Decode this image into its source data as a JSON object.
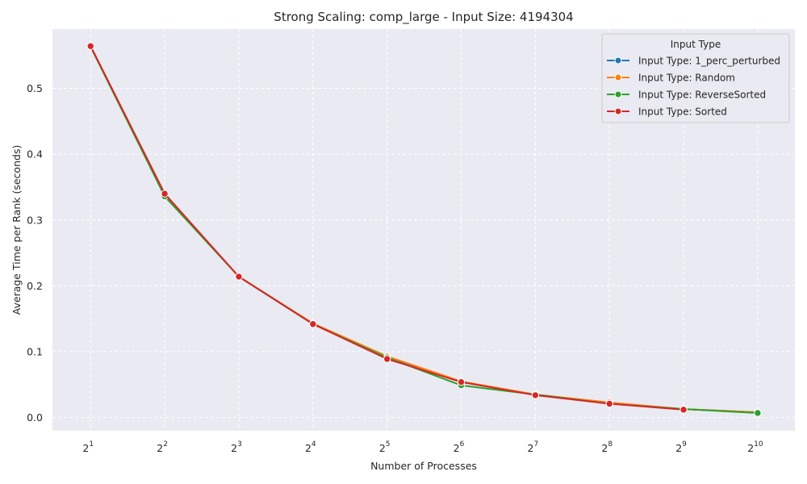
{
  "chart_data": {
    "type": "line",
    "title": "Strong Scaling: comp_large - Input Size: 4194304",
    "xlabel": "Number of Processes",
    "ylabel": "Average Time per Rank (seconds)",
    "x_scale": "log2",
    "x_ticks": [
      {
        "base": "2",
        "exp": "1"
      },
      {
        "base": "2",
        "exp": "2"
      },
      {
        "base": "2",
        "exp": "3"
      },
      {
        "base": "2",
        "exp": "4"
      },
      {
        "base": "2",
        "exp": "5"
      },
      {
        "base": "2",
        "exp": "6"
      },
      {
        "base": "2",
        "exp": "7"
      },
      {
        "base": "2",
        "exp": "8"
      },
      {
        "base": "2",
        "exp": "9"
      },
      {
        "base": "2",
        "exp": "10"
      }
    ],
    "y_ticks": [
      "0.0",
      "0.1",
      "0.2",
      "0.3",
      "0.4",
      "0.5"
    ],
    "xlim": [
      1.4,
      1450
    ],
    "ylim": [
      -0.02,
      0.59
    ],
    "grid": true,
    "legend": {
      "title": "Input Type",
      "placement": "top-right"
    },
    "series": [
      {
        "name": "Input Type: 1_perc_perturbed",
        "color": "#1f77b4",
        "x": [
          2,
          4,
          8,
          16,
          32,
          64,
          128,
          256,
          512,
          1024
        ],
        "y": [
          0.564,
          0.337,
          0.214,
          0.142,
          0.091,
          0.054,
          0.035,
          0.022,
          0.013,
          0.008
        ]
      },
      {
        "name": "Input Type: Random",
        "color": "#ff7f0e",
        "x": [
          2,
          4,
          8,
          16,
          32,
          64,
          128,
          256,
          512,
          1024
        ],
        "y": [
          0.564,
          0.338,
          0.214,
          0.143,
          0.093,
          0.055,
          0.035,
          0.023,
          0.013,
          0.008
        ]
      },
      {
        "name": "Input Type: ReverseSorted",
        "color": "#2ca02c",
        "x": [
          2,
          4,
          8,
          16,
          32,
          64,
          128,
          256,
          512,
          1024
        ],
        "y": [
          0.563,
          0.336,
          0.214,
          0.142,
          0.091,
          0.049,
          0.035,
          0.021,
          0.013,
          0.007
        ]
      },
      {
        "name": "Input Type: Sorted",
        "color": "#d62728",
        "x": [
          2,
          4,
          8,
          16,
          32,
          64,
          128,
          256,
          512
        ],
        "y": [
          0.564,
          0.34,
          0.214,
          0.142,
          0.089,
          0.054,
          0.034,
          0.021,
          0.012
        ]
      }
    ]
  }
}
